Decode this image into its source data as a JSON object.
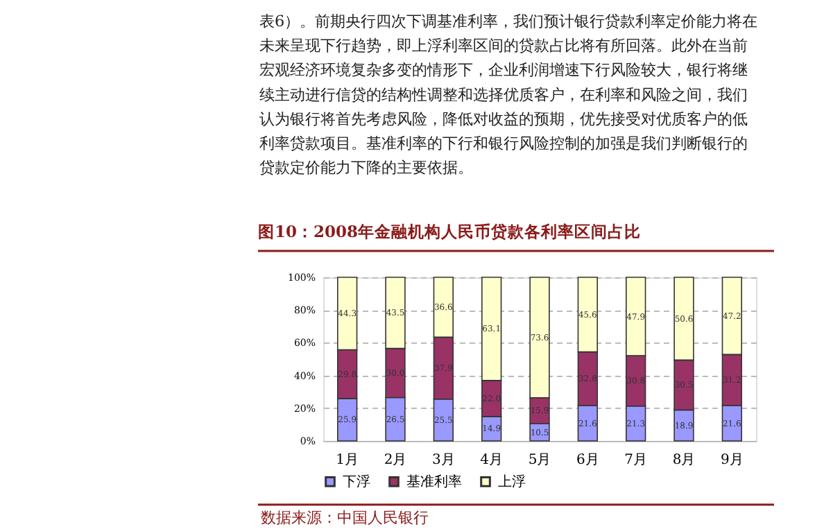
{
  "chart_data": {
    "type": "bar",
    "stacked": true,
    "title": "图10：2008年金融机构人民币贷款各利率区间占比",
    "categories": [
      "1月",
      "2月",
      "3月",
      "4月",
      "5月",
      "6月",
      "7月",
      "8月",
      "9月"
    ],
    "series": [
      {
        "name": "下浮",
        "color": "#9999ff",
        "values": [
          25.9,
          26.5,
          25.5,
          14.9,
          10.5,
          21.6,
          21.3,
          18.9,
          21.6
        ],
        "value_labels": [
          "25.9",
          "26.5",
          "25.5",
          "14.9",
          "10.5",
          "21.6",
          "21.3",
          "18.9",
          "21.6"
        ]
      },
      {
        "name": "基准利率",
        "color": "#993366",
        "values": [
          29.8,
          30.0,
          37.9,
          22.0,
          15.9,
          32.8,
          30.8,
          30.5,
          31.2
        ],
        "value_labels": [
          "29.8",
          "30.0",
          "37.9",
          "22.0",
          "15.9",
          "32.8",
          "30.8",
          "30.5",
          "31.2"
        ]
      },
      {
        "name": "上浮",
        "color": "#ffffcc",
        "values": [
          44.3,
          43.5,
          36.6,
          63.1,
          73.6,
          45.6,
          47.9,
          50.6,
          47.2
        ],
        "value_labels": [
          "44.3",
          "43.5",
          "36.6",
          "63.1",
          "73.6",
          "45.6",
          "47.9",
          "50.6",
          "47.2"
        ]
      }
    ],
    "ylim": [
      0,
      100
    ],
    "yticks": [
      {
        "value": 0,
        "label": "0%"
      },
      {
        "value": 20,
        "label": "20%"
      },
      {
        "value": 40,
        "label": "40%"
      },
      {
        "value": 60,
        "label": "60%"
      },
      {
        "value": 80,
        "label": "80%"
      },
      {
        "value": 100,
        "label": "100%"
      }
    ],
    "grid": "y",
    "legend": "bottom",
    "annotations": [
      "表6）。前期央行四次下调基准利率，我们预计银行贷款利率定价能力将在",
      "未来呈现下行趋势，即上浮利率区间的贷款占比将有所回落。此外在当前",
      "宏观经济环境复杂多变的情形下，企业利润增速下行风险较大，银行将继",
      "续主动进行信贷的结构性调整和选择优质客户，在利率和风险之间，我们",
      "认为银行将首先考虑风险，降低对收益的预期，优先接受对优质客户的低",
      "利率贷款项目。基准利率的下行和银行风险控制的加强是我们判断银行的",
      "贷款定价能力下降的主要依据。",
      "数据来源：中国人民银行"
    ]
  }
}
